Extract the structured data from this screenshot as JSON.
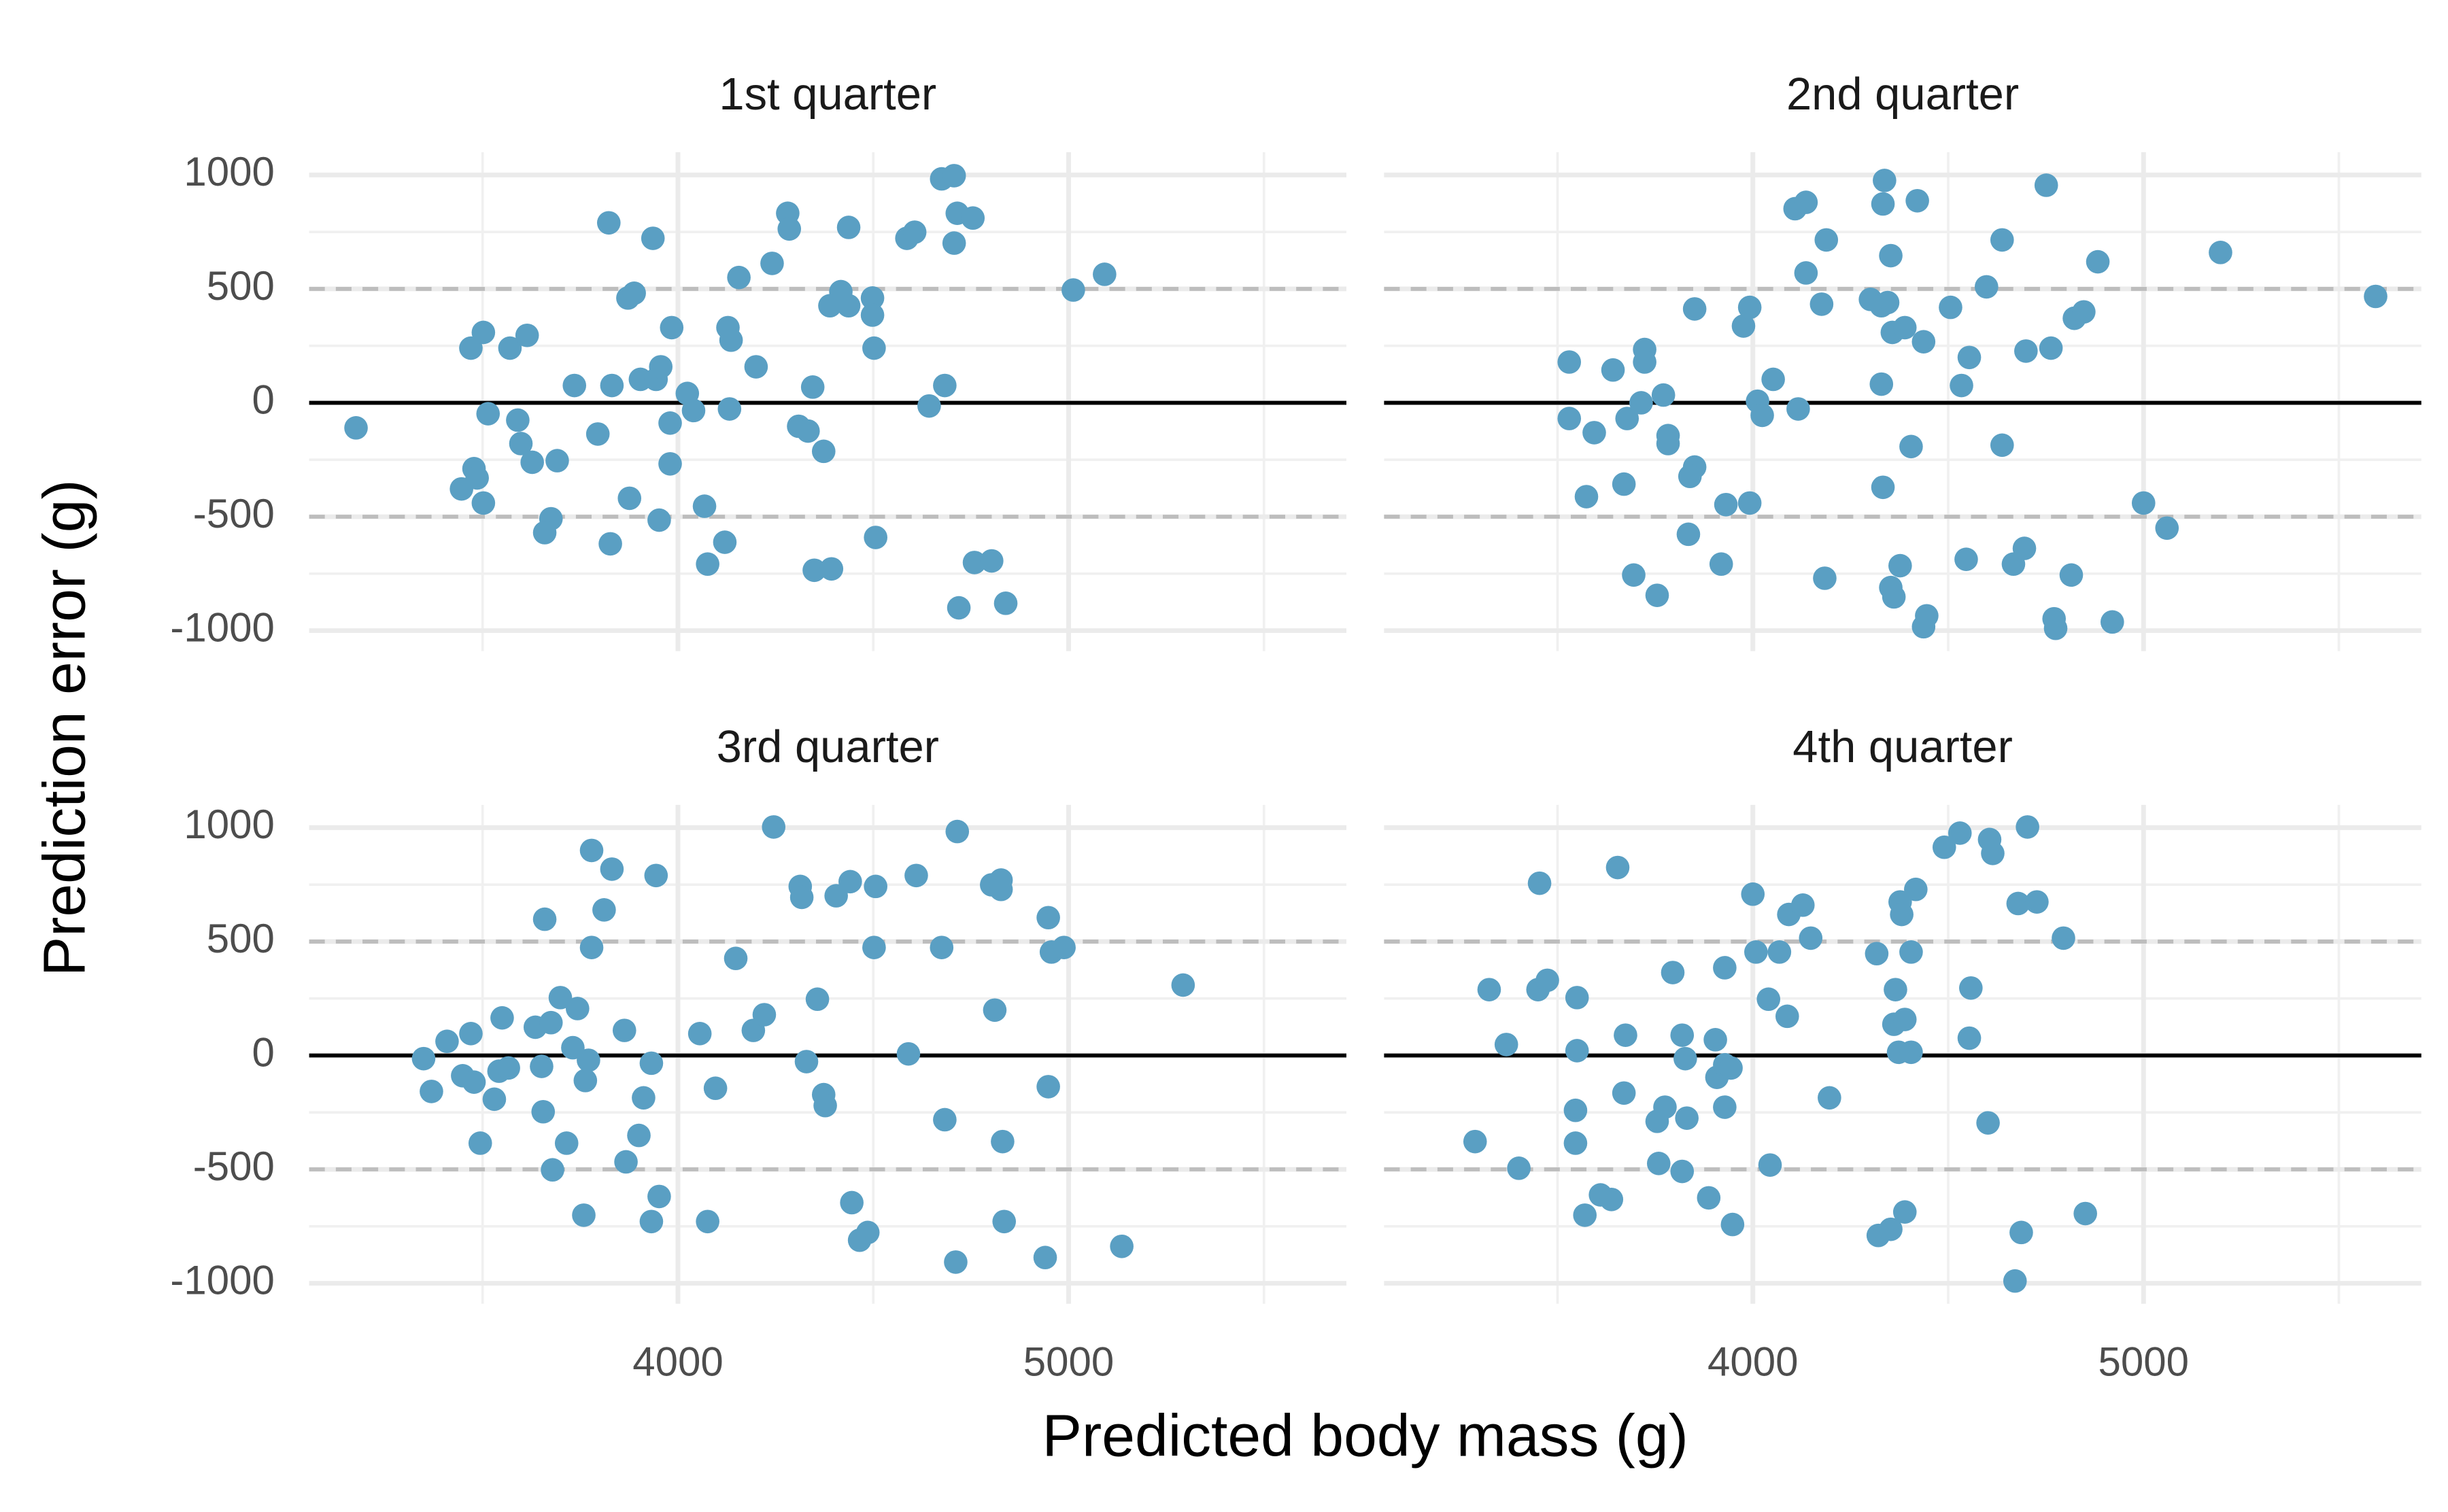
{
  "chart_data": {
    "type": "scatter",
    "x_label": "Predicted body mass (g)",
    "y_label": "Prediction error (g)",
    "color": "#5a9fc3",
    "grid": true,
    "xlim": [
      3056,
      5711
    ],
    "ylim": [
      -1090,
      1100
    ],
    "xticks": [
      4000,
      5000
    ],
    "yticks": [
      -1000,
      -500,
      0,
      500,
      1000
    ],
    "xminor": [
      3500,
      4500,
      5500
    ],
    "yminor": [
      -750,
      -250,
      250,
      750
    ],
    "hlines": [
      {
        "value": 0,
        "style": "solid"
      },
      {
        "value": 500,
        "style": "dashed"
      },
      {
        "value": -500,
        "style": "dashed"
      }
    ],
    "panels": [
      {
        "title": "1st quarter",
        "x": [
          3176,
          3470,
          3502,
          3514,
          3478,
          3486,
          3446,
          3502,
          3570,
          3614,
          3590,
          3598,
          3627,
          3691,
          3675,
          3659,
          3823,
          3831,
          3735,
          3795,
          3827,
          3876,
          3872,
          3888,
          3936,
          3904,
          3944,
          3956,
          3952,
          3984,
          3980,
          3980,
          4024,
          4040,
          4068,
          4076,
          4120,
          4128,
          4136,
          4132,
          4156,
          4200,
          4241,
          4281,
          4285,
          4309,
          4333,
          4345,
          4349,
          4393,
          4373,
          4389,
          4417,
          4437,
          4437,
          4498,
          4498,
          4502,
          4506,
          4586,
          4606,
          4675,
          4707,
          4715,
          4707,
          4755,
          4719,
          4683,
          4643,
          4759,
          4803,
          4839,
          5012,
          5092
        ],
        "y": [
          -110,
          240,
          309,
          -48,
          -289,
          -330,
          -378,
          -440,
          240,
          296,
          -76,
          -179,
          -261,
          -254,
          -509,
          -570,
          790,
          76,
          76,
          -137,
          -619,
          -419,
          460,
          481,
          722,
          103,
          103,
          158,
          -515,
          330,
          -89,
          -268,
          41,
          -34,
          -454,
          -708,
          -612,
          330,
          275,
          -27,
          550,
          158,
          612,
          832,
          763,
          -103,
          -124,
          69,
          -735,
          -729,
          -213,
          426,
          488,
          770,
          426,
          460,
          385,
          240,
          -591,
          722,
          749,
          983,
          997,
          832,
          701,
          811,
          -900,
          76,
          -14,
          -701,
          -694,
          -880,
          495,
          564
        ]
      },
      {
        "title": "2nd quarter",
        "x": [
          3530,
          3530,
          3594,
          3574,
          3642,
          3678,
          3714,
          3723,
          3723,
          3771,
          3783,
          3783,
          3670,
          3695,
          3755,
          3851,
          3839,
          3835,
          3851,
          3919,
          3931,
          3992,
          3976,
          3992,
          4012,
          4024,
          4052,
          4116,
          4108,
          4136,
          4136,
          4176,
          4188,
          4184,
          4301,
          4329,
          4345,
          4337,
          4333,
          4329,
          4333,
          4353,
          4357,
          4389,
          4353,
          4361,
          4377,
          4405,
          4421,
          4437,
          4445,
          4437,
          4506,
          4546,
          4534,
          4554,
          4598,
          4638,
          4638,
          4667,
          4695,
          4699,
          4751,
          4763,
          4771,
          4775,
          4823,
          4847,
          4815,
          4883,
          4920,
          5000,
          5060,
          5197,
          5594
        ],
        "y": [
          179,
          -69,
          -131,
          -412,
          144,
          -69,
          0,
          234,
          179,
          34,
          -144,
          -179,
          -357,
          -756,
          -845,
          -282,
          -323,
          -577,
          412,
          -708,
          -447,
          -440,
          337,
          419,
          7,
          -55,
          103,
          -27,
          852,
          880,
          570,
          433,
          715,
          -770,
          454,
          426,
          440,
          976,
          873,
          82,
          -371,
          646,
          309,
          330,
          -811,
          -852,
          -715,
          -192,
          887,
          268,
          -935,
          -983,
          419,
          -687,
          76,
          199,
          509,
          715,
          -186,
          -708,
          -639,
          227,
          955,
          240,
          -948,
          -990,
          371,
          399,
          -756,
          619,
          -962,
          -440,
          -550,
          660,
          467
        ]
      },
      {
        "title": "3rd quarter",
        "x": [
          3349,
          3369,
          3409,
          3449,
          3470,
          3478,
          3494,
          3530,
          3550,
          3542,
          3566,
          3635,
          3659,
          3651,
          3655,
          3675,
          3679,
          3699,
          3715,
          3731,
          3743,
          3759,
          3763,
          3771,
          3779,
          3779,
          3811,
          3831,
          3863,
          3867,
          3900,
          3912,
          3932,
          3932,
          3944,
          3952,
          4056,
          4076,
          4096,
          4148,
          4193,
          4221,
          4245,
          4313,
          4317,
          4329,
          4357,
          4373,
          4377,
          4405,
          4441,
          4445,
          4465,
          4486,
          4506,
          4502,
          4590,
          4610,
          4675,
          4683,
          4715,
          4711,
          4803,
          4811,
          4827,
          4827,
          4831,
          4835,
          4948,
          4956,
          4988,
          4948,
          4940,
          5136,
          5293
        ],
        "y": [
          -14,
          -158,
          62,
          -89,
          96,
          -117,
          -385,
          -192,
          165,
          -69,
          -55,
          124,
          598,
          -48,
          -247,
          144,
          -502,
          254,
          -385,
          34,
          206,
          -701,
          -110,
          -21,
          900,
          474,
          639,
          818,
          110,
          -467,
          -351,
          -186,
          -34,
          -729,
          790,
          -619,
          96,
          -729,
          -144,
          426,
          110,
          179,
          1003,
          742,
          694,
          -27,
          247,
          -172,
          -220,
          701,
          763,
          -646,
          -811,
          -777,
          742,
          474,
          7,
          790,
          474,
          -282,
          983,
          -907,
          749,
          199,
          770,
          729,
          -378,
          -729,
          605,
          454,
          474,
          -137,
          -887,
          -838,
          309
        ]
      },
      {
        "title": "4th quarter",
        "x": [
          3289,
          3325,
          3369,
          3401,
          3450,
          3474,
          3454,
          3550,
          3550,
          3546,
          3546,
          3570,
          3610,
          3638,
          3654,
          3674,
          3670,
          3755,
          3775,
          3759,
          3795,
          3819,
          3819,
          3827,
          3831,
          3887,
          3904,
          3928,
          3908,
          3928,
          3944,
          3928,
          3948,
          4000,
          4008,
          4044,
          4040,
          4068,
          4088,
          4092,
          4128,
          4148,
          4196,
          4317,
          4321,
          4353,
          4361,
          4365,
          4377,
          4381,
          4389,
          4373,
          4405,
          4389,
          4405,
          4417,
          4490,
          4530,
          4558,
          4554,
          4606,
          4614,
          4602,
          4679,
          4703,
          4727,
          4671,
          4687,
          4795,
          4851
        ],
        "y": [
          -378,
          289,
          48,
          -495,
          289,
          330,
          756,
          254,
          21,
          -241,
          -385,
          -701,
          -612,
          -632,
          825,
          89,
          -165,
          -289,
          -227,
          -474,
          364,
          -509,
          89,
          -14,
          -275,
          -625,
          69,
          385,
          -96,
          -41,
          -55,
          -227,
          -742,
          708,
          454,
          -481,
          247,
          454,
          172,
          619,
          660,
          515,
          -186,
          447,
          -790,
          -763,
          137,
          289,
          674,
          619,
          158,
          14,
          14,
          -687,
          454,
          729,
          914,
          976,
          296,
          76,
          948,
          887,
          -296,
          667,
          1003,
          674,
          -990,
          -777,
          515,
          -694
        ]
      }
    ]
  }
}
